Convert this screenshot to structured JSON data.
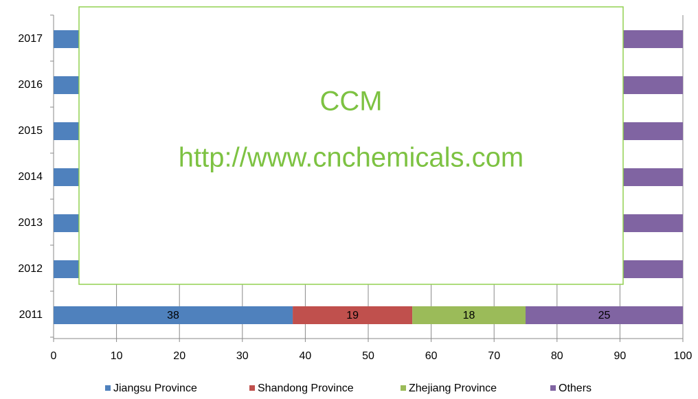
{
  "chart_data": {
    "type": "stacked-barh",
    "categories": [
      "2017",
      "2016",
      "2015",
      "2014",
      "2013",
      "2012",
      "2011"
    ],
    "series": [
      {
        "name": "Jiangsu Province",
        "color": "#4f81bd",
        "values": [
          null,
          null,
          null,
          null,
          null,
          null,
          38
        ]
      },
      {
        "name": "Shandong Province",
        "color": "#c0504d",
        "values": [
          null,
          null,
          null,
          null,
          null,
          null,
          19
        ]
      },
      {
        "name": "Zhejiang Province",
        "color": "#9bbb59",
        "values": [
          null,
          null,
          null,
          null,
          null,
          null,
          18
        ]
      },
      {
        "name": "Others",
        "color": "#8064a2",
        "values": [
          null,
          null,
          null,
          null,
          null,
          null,
          25
        ]
      }
    ],
    "xlim": [
      0,
      100
    ],
    "xticks": [
      0,
      10,
      20,
      30,
      40,
      50,
      60,
      70,
      80,
      90,
      100
    ],
    "grid": true,
    "legend": "bottom",
    "annotations": [
      "CCM",
      "http://www.cnchemicals.com"
    ]
  }
}
